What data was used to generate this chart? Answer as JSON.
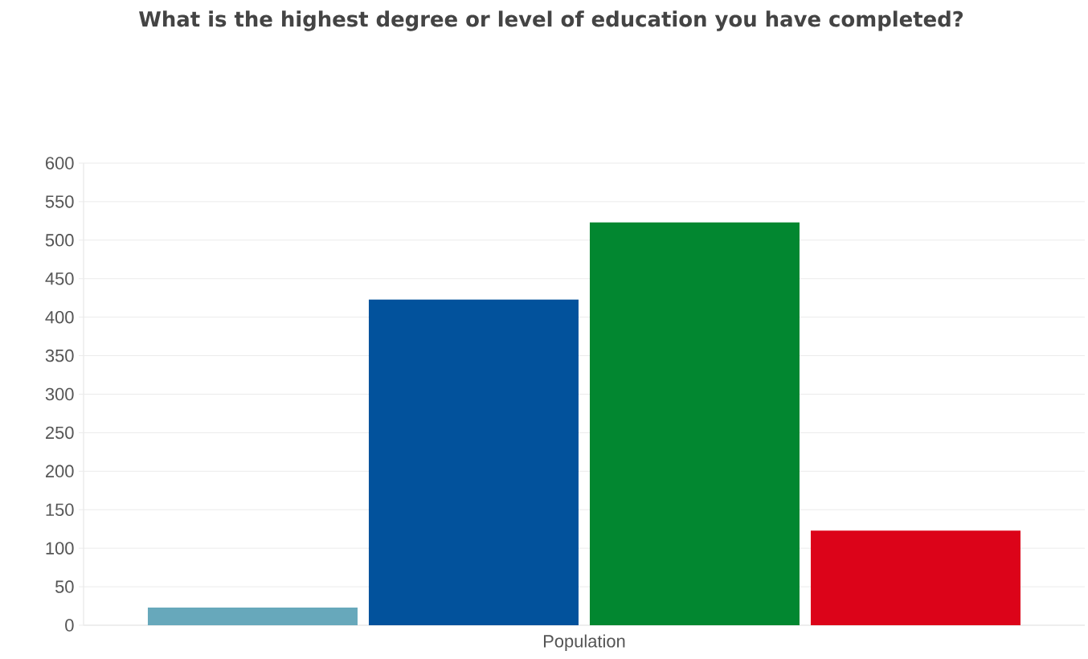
{
  "chart_data": {
    "type": "bar",
    "title": "What is the highest degree or level of education you have completed?",
    "categories": [
      "Population"
    ],
    "series": [
      {
        "color": "#67a8bb",
        "values": [
          23
        ]
      },
      {
        "color": "#02529c",
        "values": [
          423
        ]
      },
      {
        "color": "#028730",
        "values": [
          523
        ]
      },
      {
        "color": "#dc0319",
        "values": [
          123
        ]
      }
    ],
    "ylim": [
      0,
      600
    ],
    "yticks": [
      0,
      50,
      100,
      150,
      200,
      250,
      300,
      350,
      400,
      450,
      500,
      550,
      600
    ],
    "grid": "y"
  }
}
